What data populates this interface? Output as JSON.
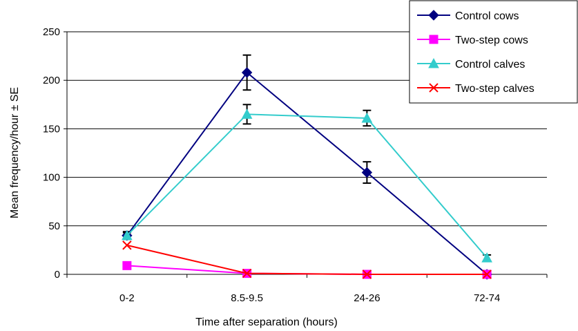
{
  "chart_data": {
    "type": "line",
    "title": "",
    "xlabel": "Time after separation (hours)",
    "ylabel": "Mean frequency/hour ± SE",
    "categories": [
      "0-2",
      "8.5-9.5",
      "24-26",
      "72-74"
    ],
    "ylim": [
      0,
      250
    ],
    "yticks": [
      0,
      50,
      100,
      150,
      200,
      250
    ],
    "grid": "horizontal",
    "legend_position": "top-right",
    "series": [
      {
        "name": "Control cows",
        "color": "#000080",
        "marker": "diamond",
        "values": [
          40,
          208,
          105,
          0
        ],
        "errors": [
          4,
          18,
          11,
          0
        ]
      },
      {
        "name": "Two-step cows",
        "color": "#FF00FF",
        "marker": "square",
        "values": [
          9,
          1,
          0,
          0
        ],
        "errors": [
          0,
          0,
          0,
          0
        ]
      },
      {
        "name": "Control calves",
        "color": "#33CCCC",
        "marker": "triangle",
        "values": [
          40,
          165,
          161,
          17
        ],
        "errors": [
          3,
          10,
          8,
          3
        ]
      },
      {
        "name": "Two-step calves",
        "color": "#FF0000",
        "marker": "x",
        "values": [
          30,
          1,
          0,
          0
        ],
        "errors": [
          0,
          0,
          0,
          0
        ]
      }
    ]
  }
}
